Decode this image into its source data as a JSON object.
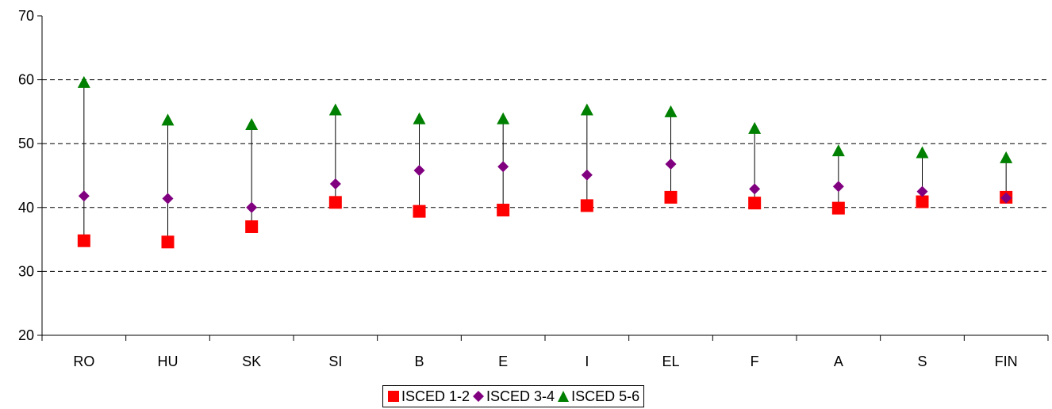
{
  "chart_data": {
    "type": "scatter",
    "title": "",
    "xlabel": "",
    "ylabel": "",
    "categories": [
      "RO",
      "HU",
      "SK",
      "SI",
      "B",
      "E",
      "I",
      "EL",
      "F",
      "A",
      "S",
      "FIN"
    ],
    "ylim": [
      20,
      70
    ],
    "yticks": [
      20,
      30,
      40,
      50,
      60,
      70
    ],
    "grid": "horizontal dashed at 30, 40, 50, 60",
    "legend_position": "bottom",
    "range_lines": "vertical line from min to max per category",
    "series": [
      {
        "name": "ISCED 1-2",
        "marker": "square",
        "color": "#ff0000",
        "values": [
          34.8,
          34.6,
          37.0,
          40.8,
          39.4,
          39.6,
          40.3,
          41.6,
          40.7,
          39.9,
          40.9,
          41.6
        ]
      },
      {
        "name": "ISCED 3-4",
        "marker": "diamond",
        "color": "#800080",
        "values": [
          41.8,
          41.4,
          40.0,
          43.7,
          45.8,
          46.4,
          45.1,
          46.8,
          42.9,
          43.3,
          42.5,
          41.5
        ]
      },
      {
        "name": "ISCED 5-6",
        "marker": "triangle",
        "color": "#008000",
        "values": [
          59.6,
          53.7,
          53.0,
          55.3,
          53.9,
          53.9,
          55.3,
          55.0,
          52.4,
          48.9,
          48.6,
          47.8
        ]
      }
    ]
  }
}
